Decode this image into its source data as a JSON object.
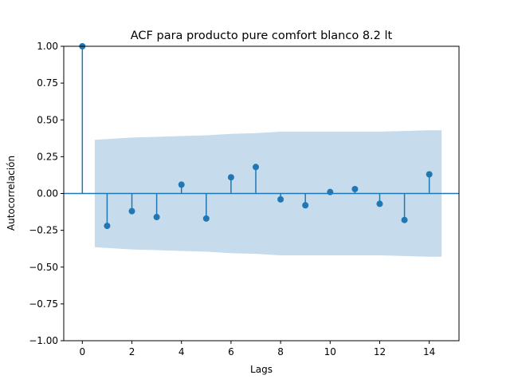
{
  "chart_data": {
    "type": "scatter",
    "title": "ACF para producto pure comfort blanco 8.2 lt",
    "xlabel": "Lags",
    "ylabel": "Autocorrelación",
    "xlim": [
      -0.75,
      15.2
    ],
    "ylim": [
      -1.0,
      1.0
    ],
    "x_ticks": [
      0,
      2,
      4,
      6,
      8,
      10,
      12,
      14
    ],
    "x_tick_labels": [
      "0",
      "2",
      "4",
      "6",
      "8",
      "10",
      "12",
      "14"
    ],
    "y_ticks": [
      -1.0,
      -0.75,
      -0.5,
      -0.25,
      0.0,
      0.25,
      0.5,
      0.75,
      1.0
    ],
    "y_tick_labels": [
      "−1.00",
      "−0.75",
      "−0.50",
      "−0.25",
      "0.00",
      "0.25",
      "0.50",
      "0.75",
      "1.00"
    ],
    "grid": false,
    "lags": [
      0,
      1,
      2,
      3,
      4,
      5,
      6,
      7,
      8,
      9,
      10,
      11,
      12,
      13,
      14
    ],
    "values": [
      1.0,
      -0.22,
      -0.12,
      -0.16,
      0.06,
      -0.17,
      0.11,
      0.18,
      -0.04,
      -0.08,
      0.01,
      0.03,
      -0.07,
      -0.18,
      0.13
    ],
    "confidence_band": {
      "x": [
        0.5,
        1,
        2,
        3,
        4,
        5,
        6,
        7,
        8,
        9,
        10,
        11,
        12,
        13,
        14,
        14.5
      ],
      "upper": [
        0.365,
        0.37,
        0.38,
        0.385,
        0.39,
        0.395,
        0.405,
        0.41,
        0.42,
        0.42,
        0.42,
        0.42,
        0.42,
        0.425,
        0.43,
        0.43
      ]
    },
    "colors": {
      "stem": "#1f77b4",
      "marker": "#1f77b4",
      "band": "#c6dbec",
      "zero_line": "#1f77b4"
    }
  }
}
